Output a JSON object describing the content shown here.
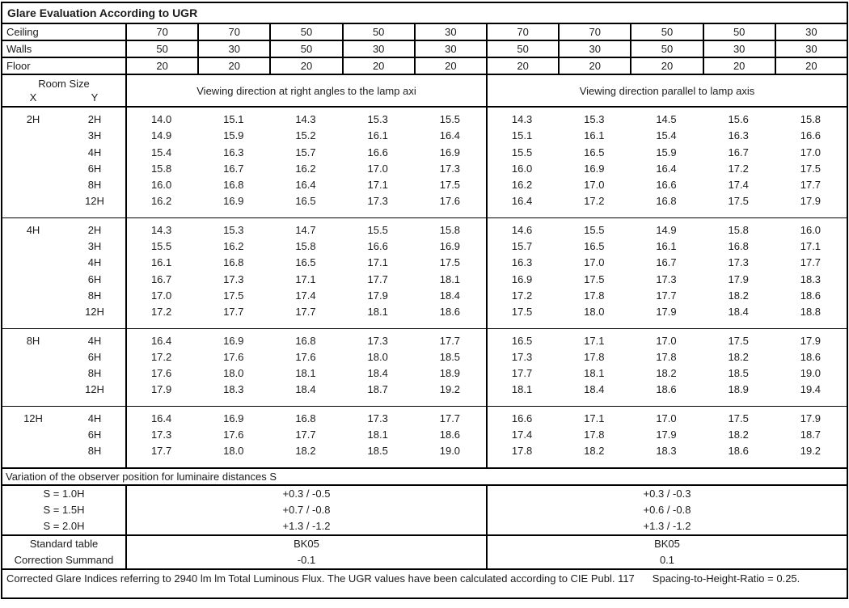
{
  "title": "Glare Evaluation According to UGR",
  "surface_rows": [
    {
      "label": "Ceiling",
      "values": [
        "70",
        "70",
        "50",
        "50",
        "30",
        "70",
        "70",
        "50",
        "50",
        "30"
      ]
    },
    {
      "label": "Walls",
      "values": [
        "50",
        "30",
        "50",
        "30",
        "30",
        "50",
        "30",
        "50",
        "30",
        "30"
      ]
    },
    {
      "label": "Floor",
      "values": [
        "20",
        "20",
        "20",
        "20",
        "20",
        "20",
        "20",
        "20",
        "20",
        "20"
      ]
    }
  ],
  "room_size": {
    "title": "Room Size",
    "x": "X",
    "y": "Y"
  },
  "sections": {
    "left": "Viewing direction at right angles to the lamp axi",
    "right": "Viewing direction parallel to lamp axis"
  },
  "blocks": [
    {
      "x": "2H",
      "rows": [
        {
          "y": "2H",
          "values": [
            "14.0",
            "15.1",
            "14.3",
            "15.3",
            "15.5",
            "14.3",
            "15.3",
            "14.5",
            "15.6",
            "15.8"
          ]
        },
        {
          "y": "3H",
          "values": [
            "14.9",
            "15.9",
            "15.2",
            "16.1",
            "16.4",
            "15.1",
            "16.1",
            "15.4",
            "16.3",
            "16.6"
          ]
        },
        {
          "y": "4H",
          "values": [
            "15.4",
            "16.3",
            "15.7",
            "16.6",
            "16.9",
            "15.5",
            "16.5",
            "15.9",
            "16.7",
            "17.0"
          ]
        },
        {
          "y": "6H",
          "values": [
            "15.8",
            "16.7",
            "16.2",
            "17.0",
            "17.3",
            "16.0",
            "16.9",
            "16.4",
            "17.2",
            "17.5"
          ]
        },
        {
          "y": "8H",
          "values": [
            "16.0",
            "16.8",
            "16.4",
            "17.1",
            "17.5",
            "16.2",
            "17.0",
            "16.6",
            "17.4",
            "17.7"
          ]
        },
        {
          "y": "12H",
          "values": [
            "16.2",
            "16.9",
            "16.5",
            "17.3",
            "17.6",
            "16.4",
            "17.2",
            "16.8",
            "17.5",
            "17.9"
          ]
        }
      ]
    },
    {
      "x": "4H",
      "rows": [
        {
          "y": "2H",
          "values": [
            "14.3",
            "15.3",
            "14.7",
            "15.5",
            "15.8",
            "14.6",
            "15.5",
            "14.9",
            "15.8",
            "16.0"
          ]
        },
        {
          "y": "3H",
          "values": [
            "15.5",
            "16.2",
            "15.8",
            "16.6",
            "16.9",
            "15.7",
            "16.5",
            "16.1",
            "16.8",
            "17.1"
          ]
        },
        {
          "y": "4H",
          "values": [
            "16.1",
            "16.8",
            "16.5",
            "17.1",
            "17.5",
            "16.3",
            "17.0",
            "16.7",
            "17.3",
            "17.7"
          ]
        },
        {
          "y": "6H",
          "values": [
            "16.7",
            "17.3",
            "17.1",
            "17.7",
            "18.1",
            "16.9",
            "17.5",
            "17.3",
            "17.9",
            "18.3"
          ]
        },
        {
          "y": "8H",
          "values": [
            "17.0",
            "17.5",
            "17.4",
            "17.9",
            "18.4",
            "17.2",
            "17.8",
            "17.7",
            "18.2",
            "18.6"
          ]
        },
        {
          "y": "12H",
          "values": [
            "17.2",
            "17.7",
            "17.7",
            "18.1",
            "18.6",
            "17.5",
            "18.0",
            "17.9",
            "18.4",
            "18.8"
          ]
        }
      ]
    },
    {
      "x": "8H",
      "rows": [
        {
          "y": "4H",
          "values": [
            "16.4",
            "16.9",
            "16.8",
            "17.3",
            "17.7",
            "16.5",
            "17.1",
            "17.0",
            "17.5",
            "17.9"
          ]
        },
        {
          "y": "6H",
          "values": [
            "17.2",
            "17.6",
            "17.6",
            "18.0",
            "18.5",
            "17.3",
            "17.8",
            "17.8",
            "18.2",
            "18.6"
          ]
        },
        {
          "y": "8H",
          "values": [
            "17.6",
            "18.0",
            "18.1",
            "18.4",
            "18.9",
            "17.7",
            "18.1",
            "18.2",
            "18.5",
            "19.0"
          ]
        },
        {
          "y": "12H",
          "values": [
            "17.9",
            "18.3",
            "18.4",
            "18.7",
            "19.2",
            "18.1",
            "18.4",
            "18.6",
            "18.9",
            "19.4"
          ]
        }
      ]
    },
    {
      "x": "12H",
      "rows": [
        {
          "y": "4H",
          "values": [
            "16.4",
            "16.9",
            "16.8",
            "17.3",
            "17.7",
            "16.6",
            "17.1",
            "17.0",
            "17.5",
            "17.9"
          ]
        },
        {
          "y": "6H",
          "values": [
            "17.3",
            "17.6",
            "17.7",
            "18.1",
            "18.6",
            "17.4",
            "17.8",
            "17.9",
            "18.2",
            "18.7"
          ]
        },
        {
          "y": "8H",
          "values": [
            "17.7",
            "18.0",
            "18.2",
            "18.5",
            "19.0",
            "17.8",
            "18.2",
            "18.3",
            "18.6",
            "19.2"
          ]
        }
      ]
    }
  ],
  "variation": {
    "header": "Variation of the observer position for luminaire distances S",
    "rows": [
      {
        "label": "S = 1.0H",
        "left": "+0.3 / -0.5",
        "right": "+0.3 / -0.3"
      },
      {
        "label": "S = 1.5H",
        "left": "+0.7 / -0.8",
        "right": "+0.6 / -0.8"
      },
      {
        "label": "S = 2.0H",
        "left": "+1.3 / -1.2",
        "right": "+1.3 / -1.2"
      }
    ]
  },
  "standard_rows": [
    {
      "label": "Standard table",
      "left": "BK05",
      "right": "BK05"
    },
    {
      "label": "Correction Summand",
      "left": "-0.1",
      "right": "0.1"
    }
  ],
  "footer": {
    "text": "Corrected Glare Indices referring to 2940 lm lm Total Luminous Flux. The UGR values have been calculated according to CIE Publ. 117",
    "ratio": "Spacing-to-Height-Ratio = 0.25."
  }
}
